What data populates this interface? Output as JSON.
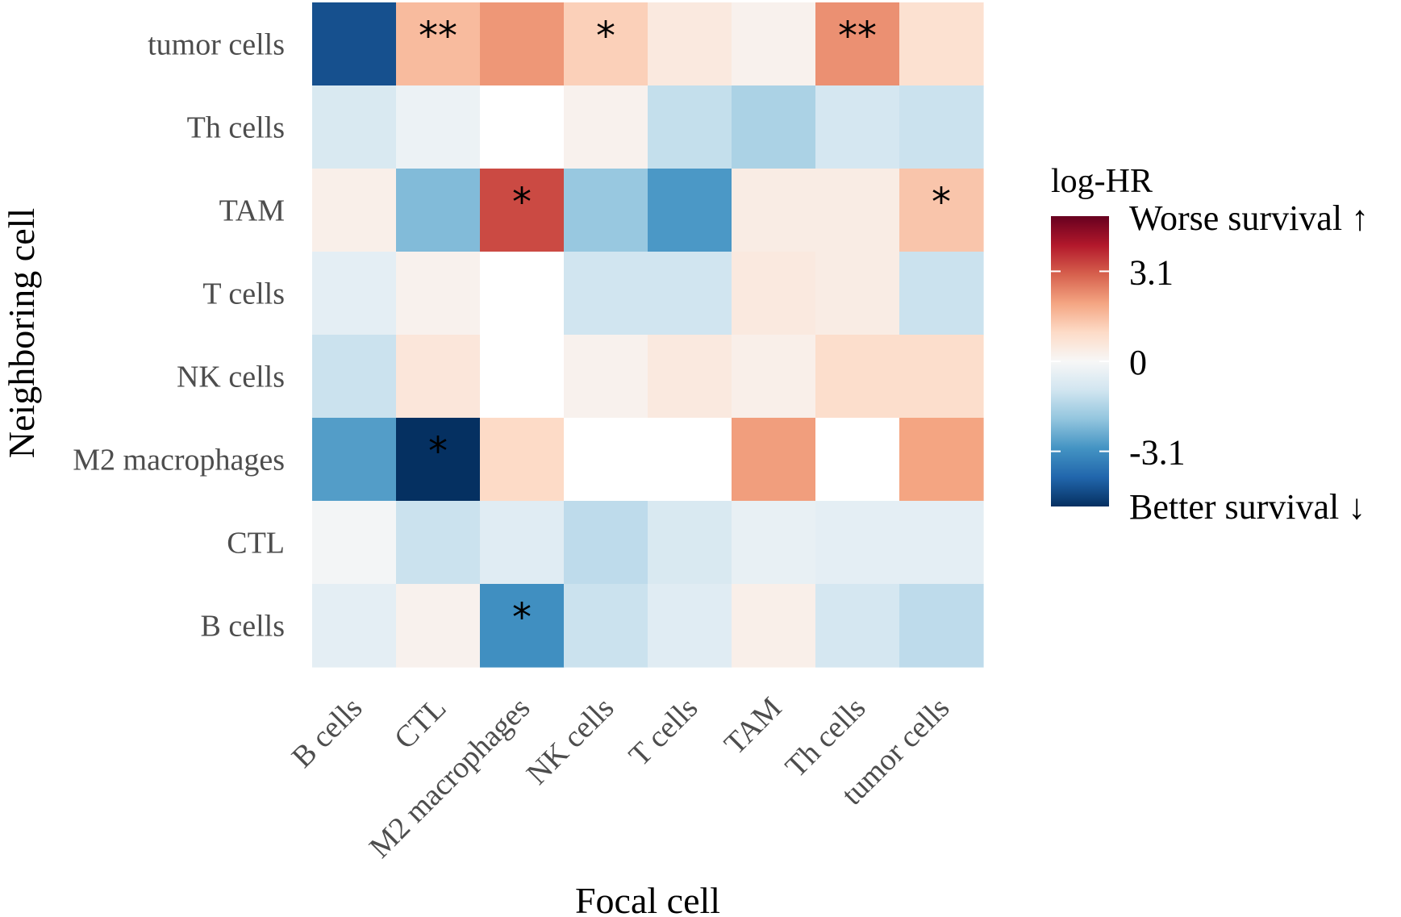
{
  "chart_data": {
    "type": "heatmap",
    "xlabel": "Focal cell",
    "ylabel": "Neighboring cell",
    "x_categories": [
      "B cells",
      "CTL",
      "M2 macrophages",
      "NK cells",
      "T cells",
      "TAM",
      "Th cells",
      "tumor cells"
    ],
    "y_categories": [
      "tumor cells",
      "Th cells",
      "TAM",
      "T cells",
      "NK cells",
      "M2 macrophages",
      "CTL",
      "B cells"
    ],
    "values": [
      [
        -4.4,
        1.6,
        2.2,
        1.2,
        0.5,
        0.2,
        2.3,
        0.8
      ],
      [
        -0.8,
        -0.3,
        0.0,
        0.2,
        -1.2,
        -1.6,
        -0.9,
        -1.1
      ],
      [
        0.3,
        -2.2,
        3.3,
        -1.9,
        -2.9,
        0.4,
        0.4,
        1.4
      ],
      [
        -0.5,
        0.2,
        0.0,
        -1.0,
        -1.0,
        0.5,
        0.4,
        -1.1
      ],
      [
        -1.1,
        0.6,
        0.0,
        0.2,
        0.5,
        0.3,
        0.9,
        0.9
      ],
      [
        -2.8,
        -5.0,
        1.0,
        0.0,
        0.0,
        2.1,
        0.0,
        2.0
      ],
      [
        -0.1,
        -1.1,
        -0.6,
        -1.3,
        -0.8,
        -0.4,
        -0.5,
        -0.5
      ],
      [
        -0.5,
        0.2,
        -3.1,
        -1.1,
        -0.6,
        0.3,
        -0.9,
        -1.3
      ]
    ],
    "significance": [
      [
        "",
        "**",
        "",
        "*",
        "",
        "",
        "**",
        ""
      ],
      [
        "",
        "",
        "",
        "",
        "",
        "",
        "",
        ""
      ],
      [
        "",
        "",
        "*",
        "",
        "",
        "",
        "",
        "*"
      ],
      [
        "",
        "",
        "",
        "",
        "",
        "",
        "",
        ""
      ],
      [
        "",
        "",
        "",
        "",
        "",
        "",
        "",
        ""
      ],
      [
        "",
        "*",
        "",
        "",
        "",
        "",
        "",
        ""
      ],
      [
        "",
        "",
        "",
        "",
        "",
        "",
        "",
        ""
      ],
      [
        "",
        "",
        "*",
        "",
        "",
        "",
        "",
        ""
      ]
    ],
    "blank_cells": [
      [
        1,
        2
      ],
      [
        3,
        2
      ],
      [
        4,
        2
      ],
      [
        5,
        3
      ],
      [
        5,
        4
      ],
      [
        5,
        6
      ]
    ],
    "legend": {
      "title": "log-HR",
      "limits": [
        -5.0,
        5.0
      ],
      "breaks": [
        3.1,
        0,
        -3.1
      ],
      "break_labels": [
        "3.1",
        "0",
        "-3.1"
      ],
      "top_label": "Worse survival ↑",
      "bottom_label": "Better survival ↓",
      "position": "right"
    },
    "colors": {
      "low": "#053061",
      "mid": "#f7f7f7",
      "high": "#67001f",
      "palette": [
        "#053061",
        "#2166ac",
        "#4393c3",
        "#92c5de",
        "#d1e5f0",
        "#f7f7f7",
        "#fddbc7",
        "#f4a582",
        "#d6604d",
        "#b2182b",
        "#67001f"
      ],
      "na": "#ffffff"
    }
  }
}
